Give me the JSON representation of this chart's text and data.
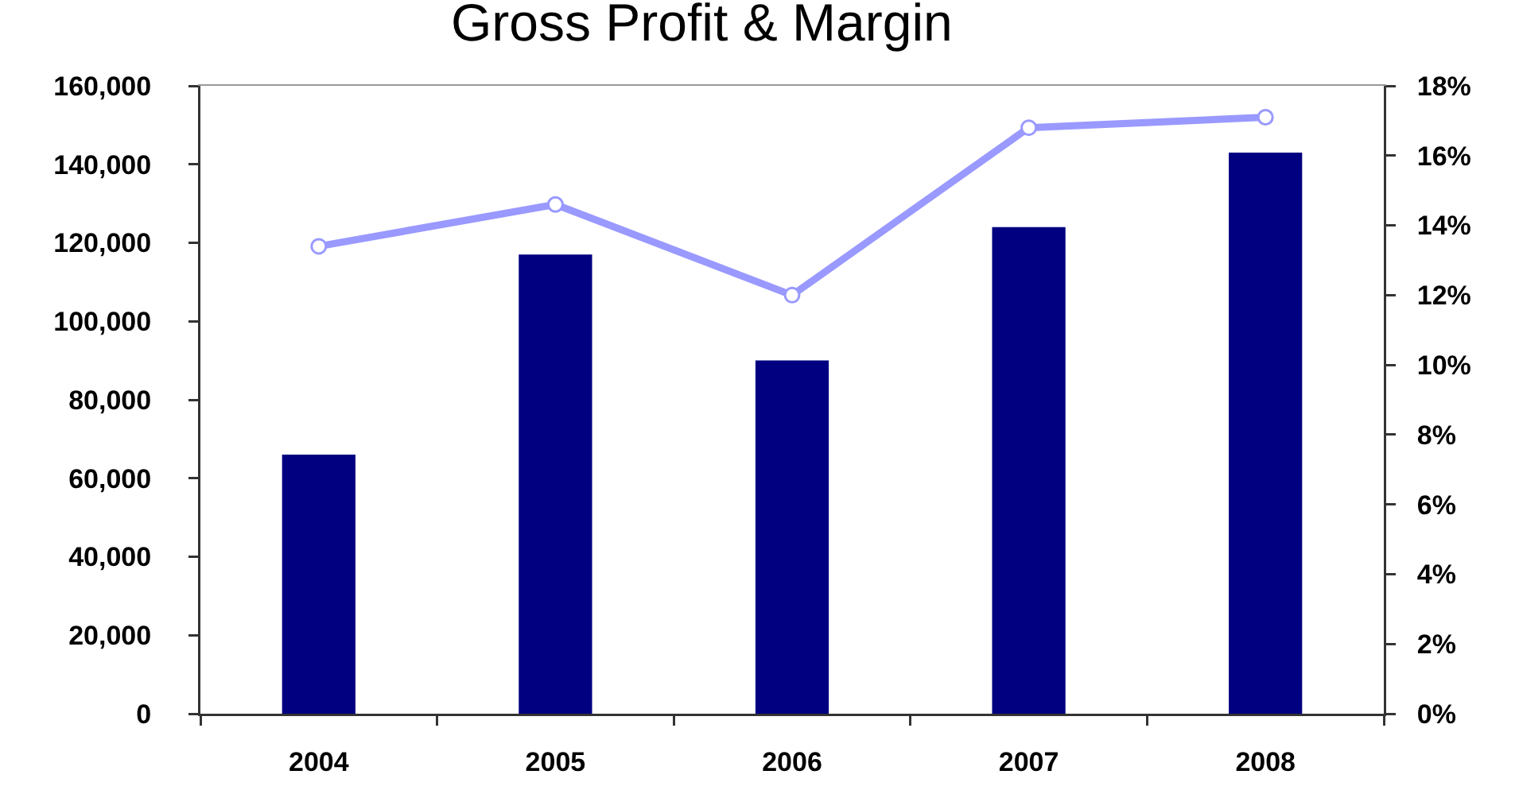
{
  "chart_data": {
    "type": "bar",
    "title": "Gross Profit & Margin",
    "categories": [
      "2004",
      "2005",
      "2006",
      "2007",
      "2008"
    ],
    "series": [
      {
        "color": "#000080",
        "values": [
          66000,
          117000,
          90000,
          124000,
          143000
        ]
      },
      {
        "type": "line",
        "axis": "y2",
        "color": "#9999ff",
        "values": [
          13.4,
          14.6,
          12.0,
          16.8,
          17.1
        ]
      }
    ],
    "ylim": [
      0,
      160000
    ],
    "yticks": [
      0,
      {
        "value": 20000,
        "label": "20,000"
      },
      {
        "value": 40000,
        "label": "40,000"
      },
      {
        "value": 60000,
        "label": "60,000"
      },
      {
        "value": 80000,
        "label": "80,000"
      },
      {
        "value": 100000,
        "label": "100,000"
      },
      {
        "value": 120000,
        "label": "120,000"
      },
      {
        "value": 140000,
        "label": "140,000"
      },
      {
        "value": 160000,
        "label": "160,000"
      }
    ],
    "y2lim": [
      0,
      18
    ],
    "y2ticks": [
      {
        "value": 0,
        "label": "0%"
      },
      {
        "value": 2,
        "label": "2%"
      },
      {
        "value": 4,
        "label": "4%"
      },
      {
        "value": 6,
        "label": "6%"
      },
      {
        "value": 8,
        "label": "8%"
      },
      {
        "value": 10,
        "label": "10%"
      },
      {
        "value": 12,
        "label": "12%"
      },
      {
        "value": 14,
        "label": "14%"
      },
      {
        "value": 16,
        "label": "16%"
      },
      {
        "value": 18,
        "label": "18%"
      }
    ],
    "marker": "circle",
    "grid": false
  }
}
